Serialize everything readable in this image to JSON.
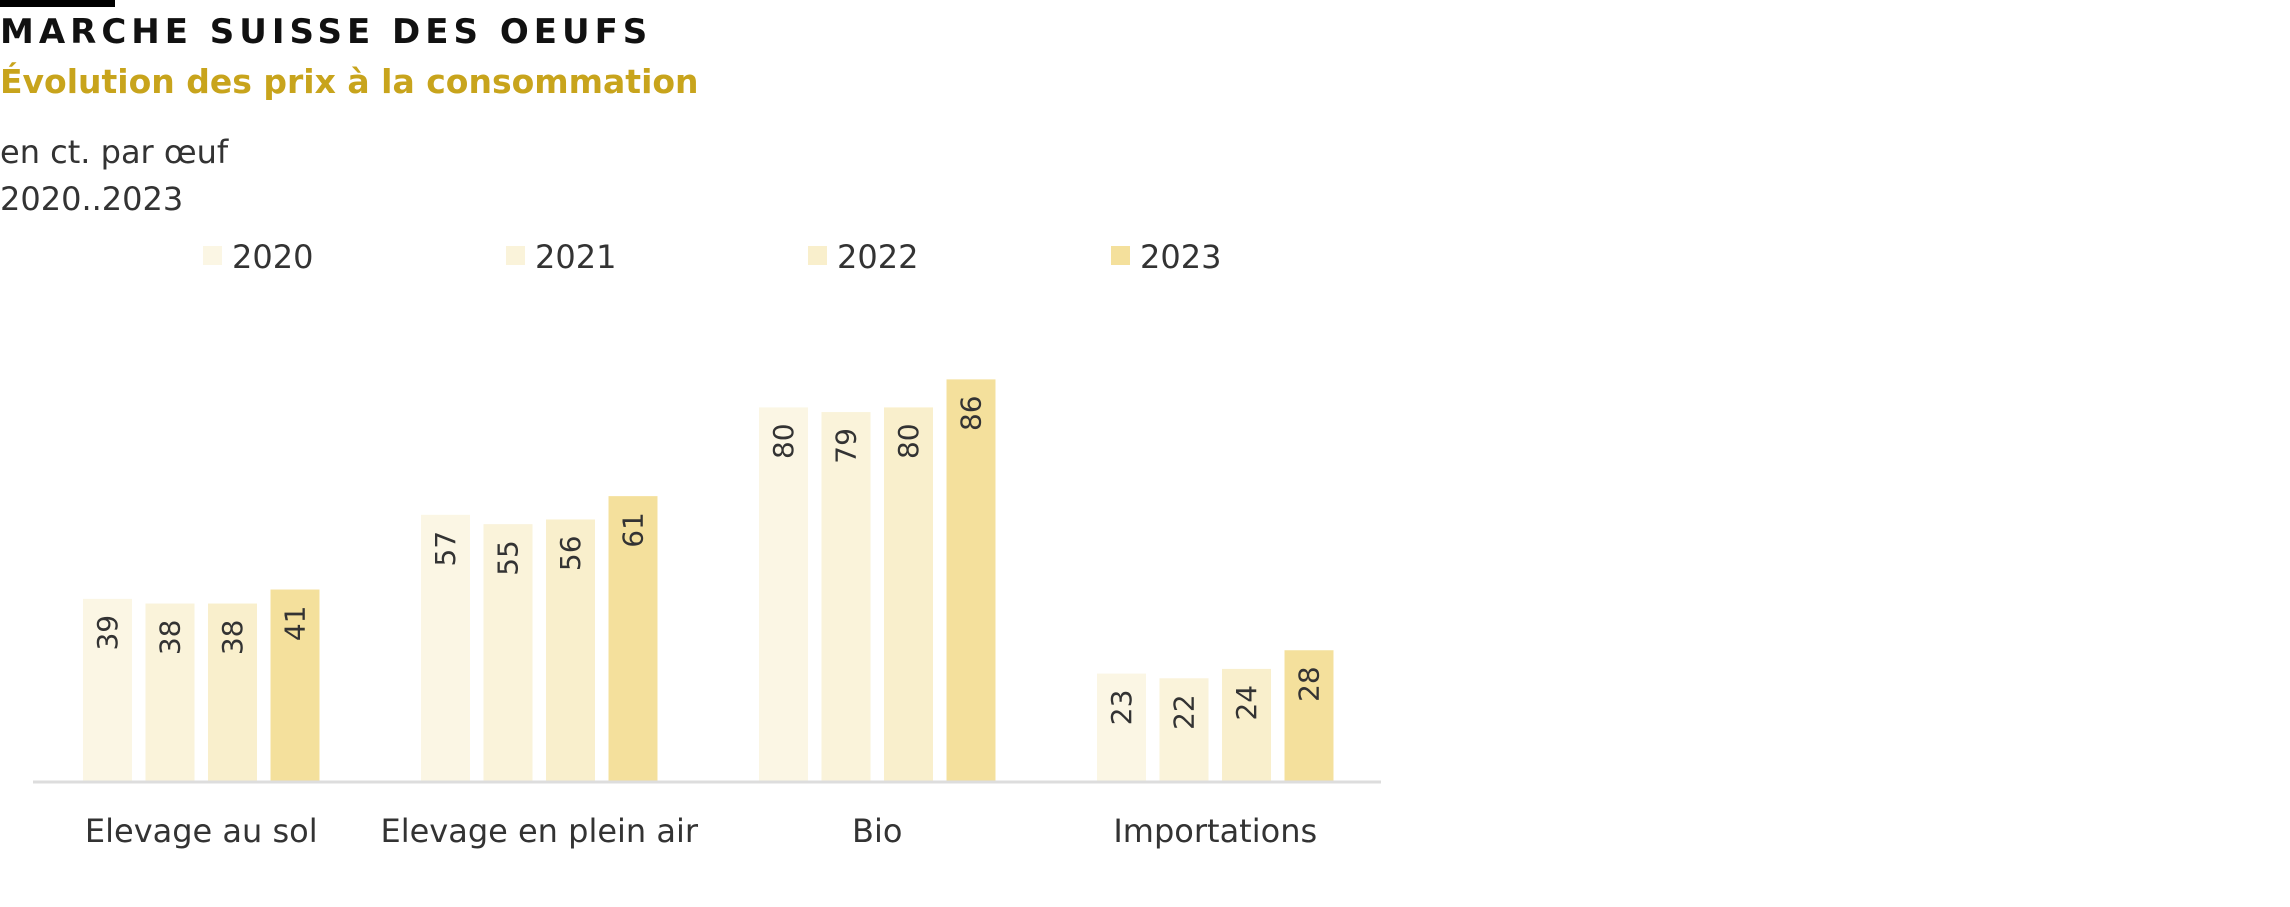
{
  "header": {
    "title": "MARCHE SUISSE DES OEUFS",
    "subtitle": "Évolution des prix à la consommation",
    "unit": "en ct. par œuf",
    "range": "2020..2023"
  },
  "colors": {
    "accent": "#c8a41c",
    "title": "#111111",
    "text": "#333333",
    "axis": "#dddddd"
  },
  "chart_data": {
    "type": "bar",
    "categories": [
      "Elevage au sol",
      "Elevage en plein air",
      "Bio",
      "Importations"
    ],
    "series": [
      {
        "name": "2020",
        "color": "#fbf6e4",
        "values": [
          39,
          57,
          80,
          23
        ]
      },
      {
        "name": "2021",
        "color": "#faf3da",
        "values": [
          38,
          55,
          79,
          22
        ]
      },
      {
        "name": "2022",
        "color": "#f9efcc",
        "values": [
          38,
          56,
          80,
          24
        ]
      },
      {
        "name": "2023",
        "color": "#f4e09c",
        "values": [
          41,
          61,
          86,
          28
        ]
      }
    ],
    "ylim": [
      0,
      100
    ],
    "grid": false,
    "legend": "top",
    "data_labels": "rotated-inside-top"
  }
}
